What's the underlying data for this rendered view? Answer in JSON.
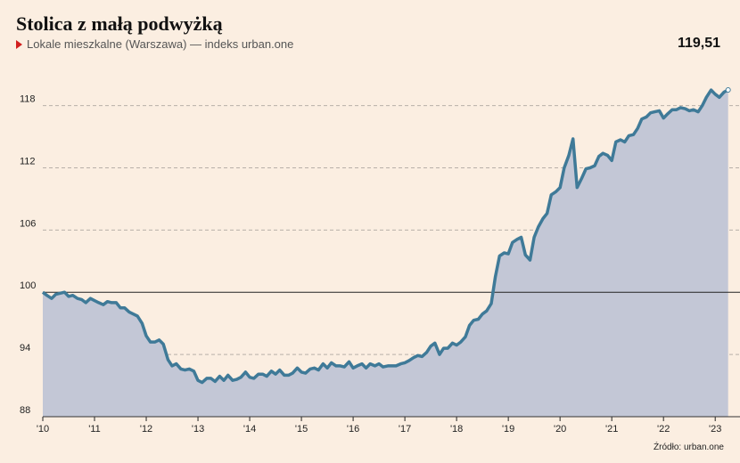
{
  "header": {
    "title": "Stolica z małą podwyżką",
    "subtitle": "Lokale mieszkalne (Warszawa) — indeks urban.one",
    "last_value_label": "119,51",
    "source": "Źródło: urban.one"
  },
  "colors": {
    "background": "#fbeee1",
    "line": "#3f7a98",
    "area": "#c3c7d6",
    "marker": "#d21f1f"
  },
  "chart_data": {
    "type": "area",
    "title": "Stolica z małą podwyżką",
    "subtitle": "Lokale mieszkalne (Warszawa) — indeks urban.one",
    "ylim": [
      88,
      122
    ],
    "yticks": [
      88,
      94,
      100,
      106,
      112,
      118
    ],
    "xlim": [
      2010,
      2023.1
    ],
    "xtick_positions": [
      2010,
      2011,
      2012,
      2013,
      2014,
      2015,
      2016,
      2017,
      2018,
      2019,
      2020,
      2021,
      2022,
      2023
    ],
    "xtick_labels": [
      "'10",
      "'11",
      "'12",
      "'13",
      "'14",
      "'15",
      "'16",
      "'17",
      "'18",
      "'19",
      "'20",
      "'21",
      "'22",
      "'23"
    ],
    "reference_line": 100,
    "grid": "horizontal dashed",
    "series": [
      {
        "points": [
          [
            2010.0,
            100.0
          ],
          [
            2010.08,
            99.7
          ],
          [
            2010.17,
            99.4
          ],
          [
            2010.25,
            99.8
          ],
          [
            2010.33,
            99.9
          ],
          [
            2010.42,
            100.0
          ],
          [
            2010.5,
            99.6
          ],
          [
            2010.58,
            99.7
          ],
          [
            2010.67,
            99.4
          ],
          [
            2010.75,
            99.3
          ],
          [
            2010.83,
            99.0
          ],
          [
            2010.92,
            99.4
          ],
          [
            2011.0,
            99.2
          ],
          [
            2011.08,
            99.0
          ],
          [
            2011.17,
            98.8
          ],
          [
            2011.25,
            99.1
          ],
          [
            2011.33,
            99.0
          ],
          [
            2011.42,
            99.0
          ],
          [
            2011.5,
            98.5
          ],
          [
            2011.58,
            98.5
          ],
          [
            2011.67,
            98.1
          ],
          [
            2011.75,
            97.9
          ],
          [
            2011.83,
            97.7
          ],
          [
            2011.92,
            97.0
          ],
          [
            2012.0,
            95.8
          ],
          [
            2012.08,
            95.2
          ],
          [
            2012.17,
            95.2
          ],
          [
            2012.25,
            95.4
          ],
          [
            2012.33,
            95.0
          ],
          [
            2012.42,
            93.5
          ],
          [
            2012.5,
            92.9
          ],
          [
            2012.58,
            93.1
          ],
          [
            2012.67,
            92.6
          ],
          [
            2012.75,
            92.5
          ],
          [
            2012.83,
            92.6
          ],
          [
            2012.92,
            92.4
          ],
          [
            2013.0,
            91.5
          ],
          [
            2013.08,
            91.3
          ],
          [
            2013.17,
            91.7
          ],
          [
            2013.25,
            91.7
          ],
          [
            2013.33,
            91.4
          ],
          [
            2013.42,
            91.9
          ],
          [
            2013.5,
            91.5
          ],
          [
            2013.58,
            92.0
          ],
          [
            2013.67,
            91.5
          ],
          [
            2013.75,
            91.6
          ],
          [
            2013.83,
            91.8
          ],
          [
            2013.92,
            92.3
          ],
          [
            2014.0,
            91.8
          ],
          [
            2014.08,
            91.7
          ],
          [
            2014.17,
            92.1
          ],
          [
            2014.25,
            92.1
          ],
          [
            2014.33,
            91.9
          ],
          [
            2014.42,
            92.4
          ],
          [
            2014.5,
            92.1
          ],
          [
            2014.58,
            92.5
          ],
          [
            2014.67,
            92.0
          ],
          [
            2014.75,
            92.0
          ],
          [
            2014.83,
            92.2
          ],
          [
            2014.92,
            92.7
          ],
          [
            2015.0,
            92.3
          ],
          [
            2015.08,
            92.2
          ],
          [
            2015.17,
            92.6
          ],
          [
            2015.25,
            92.7
          ],
          [
            2015.33,
            92.5
          ],
          [
            2015.42,
            93.1
          ],
          [
            2015.5,
            92.7
          ],
          [
            2015.58,
            93.2
          ],
          [
            2015.67,
            92.9
          ],
          [
            2015.75,
            92.9
          ],
          [
            2015.83,
            92.8
          ],
          [
            2015.92,
            93.3
          ],
          [
            2016.0,
            92.7
          ],
          [
            2016.08,
            92.9
          ],
          [
            2016.17,
            93.1
          ],
          [
            2016.25,
            92.7
          ],
          [
            2016.33,
            93.1
          ],
          [
            2016.42,
            92.9
          ],
          [
            2016.5,
            93.1
          ],
          [
            2016.58,
            92.8
          ],
          [
            2016.67,
            92.9
          ],
          [
            2016.75,
            92.9
          ],
          [
            2016.83,
            92.9
          ],
          [
            2016.92,
            93.1
          ],
          [
            2017.0,
            93.2
          ],
          [
            2017.08,
            93.4
          ],
          [
            2017.17,
            93.7
          ],
          [
            2017.25,
            93.9
          ],
          [
            2017.33,
            93.8
          ],
          [
            2017.42,
            94.2
          ],
          [
            2017.5,
            94.8
          ],
          [
            2017.58,
            95.1
          ],
          [
            2017.67,
            94.0
          ],
          [
            2017.75,
            94.6
          ],
          [
            2017.83,
            94.6
          ],
          [
            2017.92,
            95.1
          ],
          [
            2018.0,
            94.9
          ],
          [
            2018.08,
            95.2
          ],
          [
            2018.17,
            95.7
          ],
          [
            2018.25,
            96.8
          ],
          [
            2018.33,
            97.3
          ],
          [
            2018.42,
            97.4
          ],
          [
            2018.5,
            97.9
          ],
          [
            2018.58,
            98.2
          ],
          [
            2018.67,
            98.9
          ],
          [
            2018.75,
            101.5
          ],
          [
            2018.83,
            103.5
          ],
          [
            2018.92,
            103.8
          ],
          [
            2019.0,
            103.7
          ],
          [
            2019.08,
            104.8
          ],
          [
            2019.17,
            105.1
          ],
          [
            2019.25,
            105.3
          ],
          [
            2019.33,
            103.6
          ],
          [
            2019.42,
            103.1
          ],
          [
            2019.5,
            105.3
          ],
          [
            2019.58,
            106.3
          ],
          [
            2019.67,
            107.1
          ],
          [
            2019.75,
            107.6
          ],
          [
            2019.83,
            109.4
          ],
          [
            2019.92,
            109.7
          ],
          [
            2020.0,
            110.1
          ],
          [
            2020.08,
            112.0
          ],
          [
            2020.17,
            113.2
          ],
          [
            2020.25,
            114.8
          ],
          [
            2020.33,
            110.1
          ],
          [
            2020.42,
            111.0
          ],
          [
            2020.5,
            111.9
          ],
          [
            2020.58,
            112.0
          ],
          [
            2020.67,
            112.2
          ],
          [
            2020.75,
            113.1
          ],
          [
            2020.83,
            113.4
          ],
          [
            2020.92,
            113.2
          ],
          [
            2021.0,
            112.7
          ],
          [
            2021.08,
            114.5
          ],
          [
            2021.17,
            114.7
          ],
          [
            2021.25,
            114.5
          ],
          [
            2021.33,
            115.1
          ],
          [
            2021.42,
            115.2
          ],
          [
            2021.5,
            115.8
          ],
          [
            2021.58,
            116.7
          ],
          [
            2021.67,
            116.9
          ],
          [
            2021.75,
            117.3
          ],
          [
            2021.83,
            117.4
          ],
          [
            2021.92,
            117.5
          ],
          [
            2022.0,
            116.8
          ],
          [
            2022.08,
            117.2
          ],
          [
            2022.17,
            117.6
          ],
          [
            2022.25,
            117.6
          ],
          [
            2022.33,
            117.8
          ],
          [
            2022.42,
            117.7
          ],
          [
            2022.5,
            117.5
          ],
          [
            2022.58,
            117.6
          ],
          [
            2022.67,
            117.4
          ],
          [
            2022.75,
            118.0
          ],
          [
            2022.83,
            118.8
          ],
          [
            2022.92,
            119.5
          ],
          [
            2023.0,
            119.1
          ],
          [
            2023.08,
            118.8
          ],
          [
            2023.17,
            119.3
          ],
          [
            2023.25,
            119.51
          ]
        ]
      }
    ]
  }
}
